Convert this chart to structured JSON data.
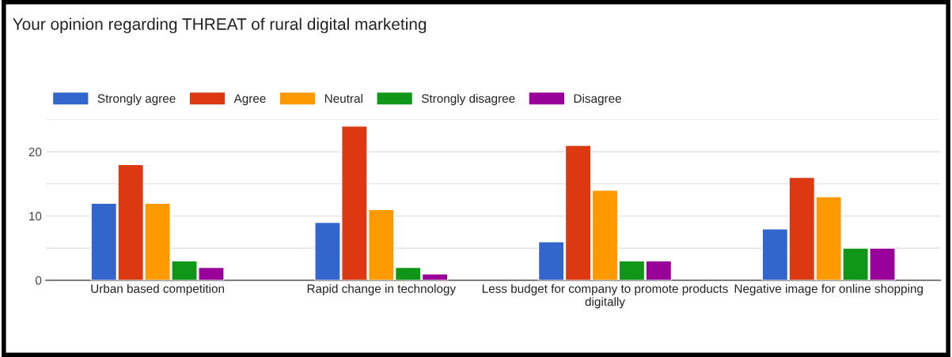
{
  "chart_data": {
    "type": "bar",
    "title": "Your opinion regarding THREAT of rural digital marketing",
    "categories": [
      "Urban based competition",
      "Rapid change in technology",
      "Less budget for company to promote products digitally",
      "Negative image for online shopping"
    ],
    "series": [
      {
        "name": "Strongly agree",
        "color": "#3366cc",
        "values": [
          12,
          9,
          6,
          8
        ]
      },
      {
        "name": "Agree",
        "color": "#dc3912",
        "values": [
          18,
          24,
          21,
          16
        ]
      },
      {
        "name": "Neutral",
        "color": "#ff9900",
        "values": [
          12,
          11,
          14,
          13
        ]
      },
      {
        "name": "Strongly disagree",
        "color": "#109618",
        "values": [
          3,
          2,
          3,
          5
        ]
      },
      {
        "name": "Disagree",
        "color": "#990099",
        "values": [
          2,
          1,
          3,
          5
        ]
      }
    ],
    "ylim": [
      0,
      25
    ],
    "yticks": [
      0,
      {
        "value": 5,
        "label": null
      },
      10,
      {
        "value": 15,
        "label": null
      },
      20,
      {
        "value": 25,
        "label": null
      }
    ],
    "grid": "y",
    "legend": "top left"
  }
}
